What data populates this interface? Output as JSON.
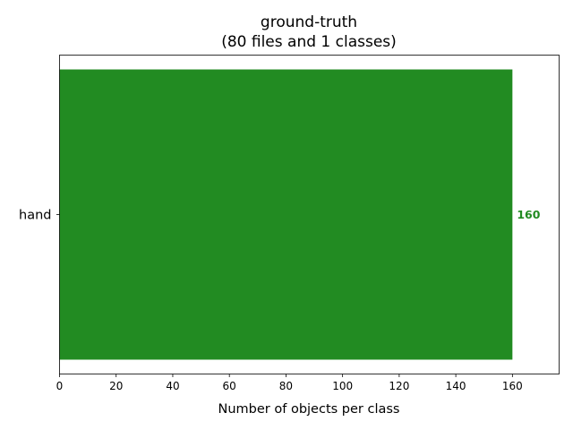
{
  "chart_data": {
    "type": "bar",
    "orientation": "horizontal",
    "title_line1": "ground-truth",
    "title_line2": "(80 files and 1 classes)",
    "categories": [
      "hand"
    ],
    "values": [
      160
    ],
    "value_labels": [
      "160"
    ],
    "xlabel": "Number of objects per class",
    "ylabel": "",
    "xlim": [
      0,
      176.5
    ],
    "xticks": [
      0,
      20,
      40,
      60,
      80,
      100,
      120,
      140,
      160
    ],
    "xtick_labels": [
      "0",
      "20",
      "40",
      "60",
      "80",
      "100",
      "120",
      "140",
      "160"
    ],
    "grid": false,
    "bar_color": "#228b22",
    "label_color": "#228b22"
  }
}
